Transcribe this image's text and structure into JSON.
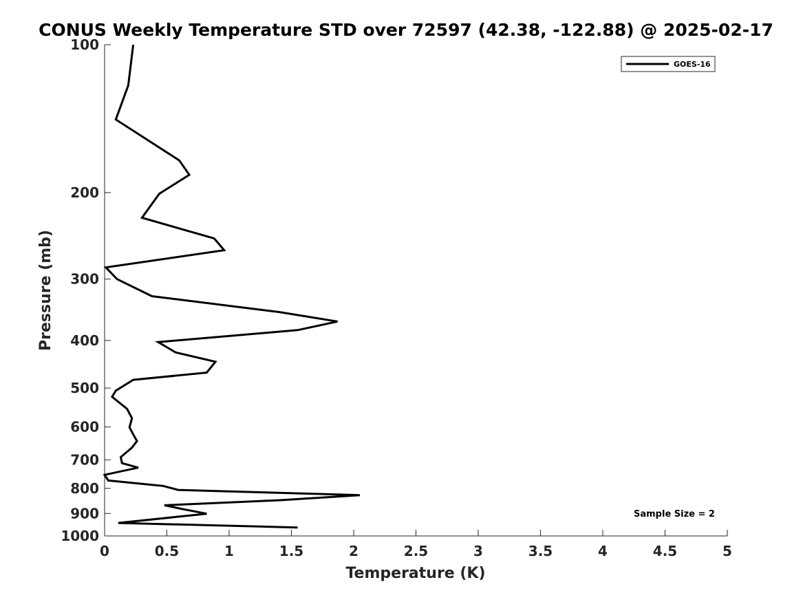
{
  "chart_data": {
    "type": "line",
    "title": "CONUS Weekly Temperature STD over 72597 (42.38, -122.88) @ 2025-02-17",
    "xlabel": "Temperature (K)",
    "ylabel": "Pressure (mb)",
    "xlim": [
      0,
      5
    ],
    "ylim": [
      100,
      1000
    ],
    "y_scale": "log",
    "y_reversed": true,
    "grid": false,
    "legend_position": "top-right",
    "x_ticks": [
      0,
      0.5,
      1,
      1.5,
      2,
      2.5,
      3,
      3.5,
      4,
      4.5,
      5
    ],
    "x_tick_labels": [
      "0",
      "0.5",
      "1",
      "1.5",
      "2",
      "2.5",
      "3",
      "3.5",
      "4",
      "4.5",
      "5"
    ],
    "y_ticks": [
      100,
      200,
      300,
      400,
      500,
      600,
      700,
      800,
      900,
      1000
    ],
    "y_tick_labels": [
      "100",
      "200",
      "300",
      "400",
      "500",
      "600",
      "700",
      "800",
      "900",
      "1000"
    ],
    "annotation": "Sample Size = 2",
    "line_color": "#000000",
    "series": [
      {
        "name": "GOES-16",
        "x": [
          0.23,
          0.19,
          0.09,
          0.6,
          0.68,
          0.44,
          0.3,
          0.88,
          0.96,
          0.01,
          0.1,
          0.38,
          1.4,
          1.87,
          1.55,
          0.43,
          0.57,
          0.89,
          0.82,
          0.23,
          0.09,
          0.06,
          0.18,
          0.22,
          0.2,
          0.23,
          0.26,
          0.22,
          0.13,
          0.14,
          0.27,
          0.0,
          0.03,
          0.47,
          0.59,
          2.05,
          1.4,
          0.48,
          0.62,
          0.82,
          0.11,
          1.55
        ],
        "y": [
          100,
          121,
          142,
          172,
          184,
          201,
          225,
          248,
          262,
          284,
          300,
          325,
          350,
          366,
          381,
          403,
          423,
          442,
          465,
          481,
          506,
          521,
          551,
          576,
          601,
          621,
          641,
          661,
          691,
          711,
          726,
          751,
          771,
          791,
          806,
          826,
          846,
          866,
          881,
          901,
          941,
          961
        ]
      }
    ]
  }
}
